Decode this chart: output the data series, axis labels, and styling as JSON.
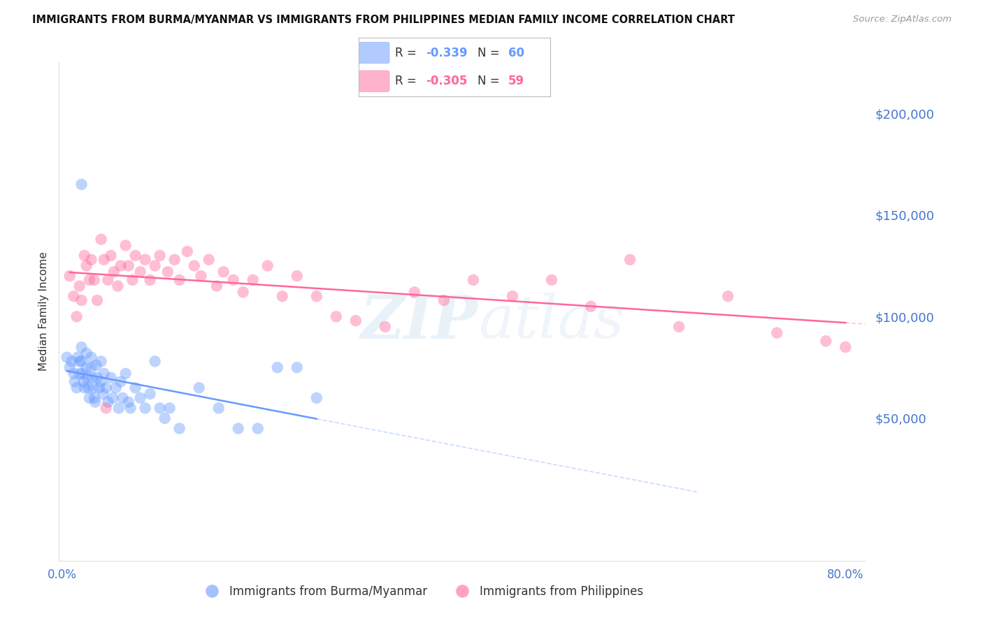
{
  "title": "IMMIGRANTS FROM BURMA/MYANMAR VS IMMIGRANTS FROM PHILIPPINES MEDIAN FAMILY INCOME CORRELATION CHART",
  "source": "Source: ZipAtlas.com",
  "ylabel": "Median Family Income",
  "background_color": "#ffffff",
  "grid_color": "#cccccc",
  "watermark": "ZIPatlas",
  "xlim": [
    -0.003,
    0.82
  ],
  "ylim": [
    -20000,
    225000
  ],
  "yticks": [
    0,
    50000,
    100000,
    150000,
    200000
  ],
  "ytick_labels": [
    "",
    "$50,000",
    "$100,000",
    "$150,000",
    "$200,000"
  ],
  "xticks": [
    0.0,
    0.1,
    0.2,
    0.3,
    0.4,
    0.5,
    0.6,
    0.7,
    0.8
  ],
  "xtick_labels": [
    "0.0%",
    "",
    "",
    "",
    "",
    "",
    "",
    "",
    "80.0%"
  ],
  "axis_label_color": "#4477cc",
  "series": [
    {
      "name": "Immigrants from Burma/Myanmar",
      "color": "#6699ff",
      "R": -0.339,
      "N": 60,
      "x": [
        0.005,
        0.008,
        0.01,
        0.012,
        0.013,
        0.015,
        0.016,
        0.018,
        0.018,
        0.02,
        0.02,
        0.021,
        0.022,
        0.023,
        0.025,
        0.025,
        0.026,
        0.027,
        0.028,
        0.03,
        0.03,
        0.031,
        0.032,
        0.033,
        0.034,
        0.035,
        0.036,
        0.038,
        0.04,
        0.04,
        0.042,
        0.043,
        0.045,
        0.047,
        0.05,
        0.052,
        0.055,
        0.058,
        0.06,
        0.062,
        0.065,
        0.068,
        0.07,
        0.075,
        0.08,
        0.085,
        0.09,
        0.095,
        0.1,
        0.105,
        0.11,
        0.12,
        0.14,
        0.16,
        0.18,
        0.2,
        0.22,
        0.24,
        0.26,
        0.02
      ],
      "y": [
        80000,
        75000,
        78000,
        72000,
        68000,
        65000,
        80000,
        78000,
        72000,
        85000,
        78000,
        72000,
        68000,
        65000,
        82000,
        75000,
        70000,
        65000,
        60000,
        80000,
        75000,
        70000,
        65000,
        60000,
        58000,
        76000,
        70000,
        65000,
        78000,
        68000,
        62000,
        72000,
        65000,
        58000,
        70000,
        60000,
        65000,
        55000,
        68000,
        60000,
        72000,
        58000,
        55000,
        65000,
        60000,
        55000,
        62000,
        78000,
        55000,
        50000,
        55000,
        45000,
        65000,
        55000,
        45000,
        45000,
        75000,
        75000,
        60000,
        165000
      ]
    },
    {
      "name": "Immigrants from Philippines",
      "color": "#ff6699",
      "R": -0.305,
      "N": 59,
      "x": [
        0.008,
        0.012,
        0.015,
        0.018,
        0.02,
        0.023,
        0.025,
        0.028,
        0.03,
        0.033,
        0.036,
        0.04,
        0.043,
        0.047,
        0.05,
        0.053,
        0.057,
        0.06,
        0.065,
        0.068,
        0.072,
        0.075,
        0.08,
        0.085,
        0.09,
        0.095,
        0.1,
        0.108,
        0.115,
        0.12,
        0.128,
        0.135,
        0.142,
        0.15,
        0.158,
        0.165,
        0.175,
        0.185,
        0.195,
        0.21,
        0.225,
        0.24,
        0.26,
        0.28,
        0.3,
        0.33,
        0.36,
        0.39,
        0.42,
        0.46,
        0.5,
        0.54,
        0.58,
        0.63,
        0.68,
        0.73,
        0.78,
        0.8,
        0.045
      ],
      "y": [
        120000,
        110000,
        100000,
        115000,
        108000,
        130000,
        125000,
        118000,
        128000,
        118000,
        108000,
        138000,
        128000,
        118000,
        130000,
        122000,
        115000,
        125000,
        135000,
        125000,
        118000,
        130000,
        122000,
        128000,
        118000,
        125000,
        130000,
        122000,
        128000,
        118000,
        132000,
        125000,
        120000,
        128000,
        115000,
        122000,
        118000,
        112000,
        118000,
        125000,
        110000,
        120000,
        110000,
        100000,
        98000,
        95000,
        112000,
        108000,
        118000,
        110000,
        118000,
        105000,
        128000,
        95000,
        110000,
        92000,
        88000,
        85000,
        55000
      ]
    }
  ]
}
